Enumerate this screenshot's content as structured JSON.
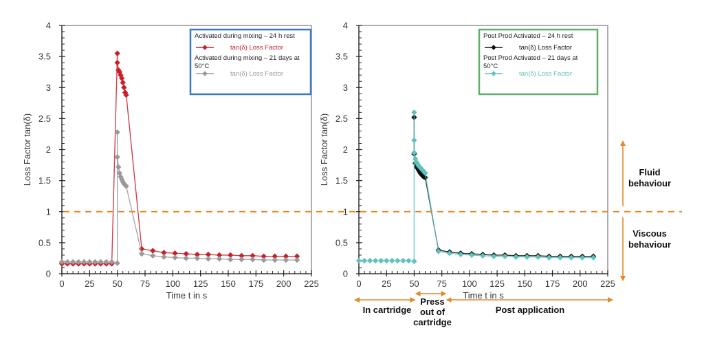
{
  "chart_data": [
    {
      "type": "line",
      "panel": "left",
      "title": "",
      "xlabel": "Time t in s",
      "ylabel": "Loss Factor tan(δ)",
      "xlim": [
        0,
        225
      ],
      "ylim": [
        0,
        4
      ],
      "xticks": [
        "0",
        "25",
        "50",
        "75",
        "100",
        "125",
        "150",
        "175",
        "200",
        "225"
      ],
      "yticks": [
        "0",
        "0.5",
        "1",
        "1.5",
        "2",
        "2.5",
        "3",
        "3.5",
        "4"
      ],
      "grid": false,
      "legend_position": "top-right",
      "legend_border_color": "#3a78c2",
      "legend": [
        {
          "header": "Activated during mixing – 24 h rest",
          "entry": "tan(δ)   Loss Factor",
          "color": "#c8202a"
        },
        {
          "header": "Activated during mixing – 21 days at 50°C",
          "entry": "tan(δ)   Loss Factor",
          "color": "#9a9a9a"
        }
      ],
      "series": [
        {
          "name": "Activated during mixing – 24 h rest",
          "color": "#c8202a",
          "marker": "diamond",
          "x": [
            0,
            5,
            10,
            15,
            20,
            25,
            30,
            35,
            40,
            45,
            50,
            50,
            51,
            52,
            53,
            54,
            55,
            56,
            57,
            58,
            72,
            82,
            92,
            102,
            112,
            122,
            132,
            142,
            152,
            162,
            172,
            182,
            192,
            202,
            212
          ],
          "y": [
            0.16,
            0.16,
            0.16,
            0.16,
            0.16,
            0.16,
            0.16,
            0.16,
            0.16,
            0.16,
            3.55,
            3.4,
            3.28,
            3.25,
            3.2,
            3.15,
            3.08,
            3.0,
            2.92,
            2.88,
            0.4,
            0.37,
            0.34,
            0.33,
            0.32,
            0.31,
            0.31,
            0.3,
            0.3,
            0.29,
            0.29,
            0.28,
            0.28,
            0.28,
            0.28
          ]
        },
        {
          "name": "Activated during mixing – 21 days at 50°C",
          "color": "#9a9a9a",
          "marker": "diamond",
          "x": [
            0,
            5,
            10,
            15,
            20,
            25,
            30,
            35,
            40,
            45,
            50,
            50,
            50,
            51,
            52,
            53,
            54,
            55,
            56,
            57,
            58,
            72,
            82,
            92,
            102,
            112,
            122,
            132,
            142,
            152,
            162,
            172,
            182,
            192,
            202,
            212
          ],
          "y": [
            0.19,
            0.19,
            0.19,
            0.19,
            0.19,
            0.19,
            0.19,
            0.19,
            0.19,
            0.19,
            0.17,
            2.28,
            1.88,
            1.72,
            1.62,
            1.56,
            1.52,
            1.48,
            1.45,
            1.43,
            1.41,
            0.32,
            0.29,
            0.27,
            0.26,
            0.25,
            0.25,
            0.24,
            0.24,
            0.23,
            0.23,
            0.23,
            0.22,
            0.22,
            0.22,
            0.22
          ]
        }
      ]
    },
    {
      "type": "line",
      "panel": "right",
      "title": "",
      "xlabel": "Time t in s",
      "ylabel": "Loss Factor tan(δ)",
      "xlim": [
        0,
        225
      ],
      "ylim": [
        0,
        4
      ],
      "xticks": [
        "0",
        "25",
        "50",
        "75",
        "100",
        "125",
        "150",
        "175",
        "200",
        "225"
      ],
      "yticks": [
        "0",
        "0.5",
        "1",
        "1.5",
        "2",
        "2.5",
        "3",
        "3.5",
        "4"
      ],
      "grid": false,
      "legend_position": "top-right",
      "legend_border_color": "#5fae6a",
      "legend": [
        {
          "header": "Post Prod Activated – 24 h rest",
          "entry": "tan(δ)   Loss Factor",
          "color": "#111111"
        },
        {
          "header": "Post Prod Activated – 21 days at 50°C",
          "entry": "tan(δ)   Loss Factor",
          "color": "#5fc2bd"
        }
      ],
      "series": [
        {
          "name": "Post Prod Activated – 24 h rest",
          "color": "#111111",
          "marker": "diamond",
          "x": [
            50,
            50,
            51,
            52,
            53,
            54,
            55,
            56,
            57,
            58,
            59,
            60,
            72,
            82,
            92,
            102,
            112,
            122,
            132,
            142,
            152,
            162,
            172,
            182,
            192,
            202,
            212
          ],
          "y": [
            2.52,
            1.93,
            1.78,
            1.72,
            1.7,
            1.67,
            1.64,
            1.61,
            1.59,
            1.57,
            1.56,
            1.55,
            0.38,
            0.35,
            0.33,
            0.32,
            0.31,
            0.3,
            0.3,
            0.29,
            0.29,
            0.29,
            0.28,
            0.28,
            0.28,
            0.28,
            0.28
          ]
        },
        {
          "name": "Post Prod Activated – 21 days at 50°C",
          "color": "#5fc2bd",
          "marker": "diamond",
          "x": [
            0,
            5,
            10,
            15,
            20,
            25,
            30,
            35,
            40,
            45,
            50,
            50,
            50,
            50,
            51,
            52,
            53,
            54,
            55,
            56,
            57,
            58,
            59,
            60,
            72,
            82,
            92,
            102,
            112,
            122,
            132,
            142,
            152,
            162,
            172,
            182,
            192,
            202,
            212
          ],
          "y": [
            0.21,
            0.21,
            0.21,
            0.21,
            0.21,
            0.21,
            0.21,
            0.21,
            0.21,
            0.21,
            0.2,
            2.6,
            2.15,
            1.95,
            1.85,
            1.8,
            1.77,
            1.74,
            1.72,
            1.7,
            1.68,
            1.66,
            1.64,
            1.62,
            0.36,
            0.33,
            0.31,
            0.3,
            0.29,
            0.28,
            0.28,
            0.27,
            0.27,
            0.27,
            0.26,
            0.26,
            0.26,
            0.26,
            0.26
          ]
        }
      ]
    }
  ],
  "threshold": {
    "value": 1,
    "color": "#e08a2c",
    "style": "dashed"
  },
  "annotations": {
    "fluid": "Fluid behaviour",
    "fluid_line1": "Fluid",
    "fluid_line2": "behaviour",
    "viscous_line1": "Viscous",
    "viscous_line2": "behaviour",
    "arrow_color": "#e08a2c",
    "phases": [
      {
        "label": [
          "In cartridge"
        ],
        "x_from": 0,
        "x_to": 50
      },
      {
        "label": [
          "Press",
          "out of",
          "cartridge"
        ],
        "x_from": 52,
        "x_to": 78
      },
      {
        "label": [
          "Post application"
        ],
        "x_from": 80,
        "x_to": 225
      }
    ]
  }
}
